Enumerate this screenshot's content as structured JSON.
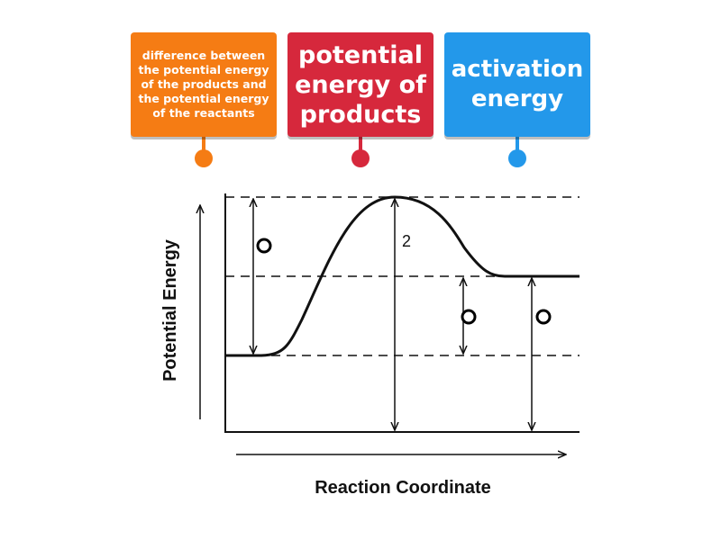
{
  "cards": [
    "difference between the potential energy of the products and the potential energy of the reactants",
    "potential energy of products",
    "activation energy"
  ],
  "diagram": {
    "y_axis_label": "Potential Energy",
    "x_axis_label": "Reaction Coordinate",
    "marker_label": "2"
  }
}
